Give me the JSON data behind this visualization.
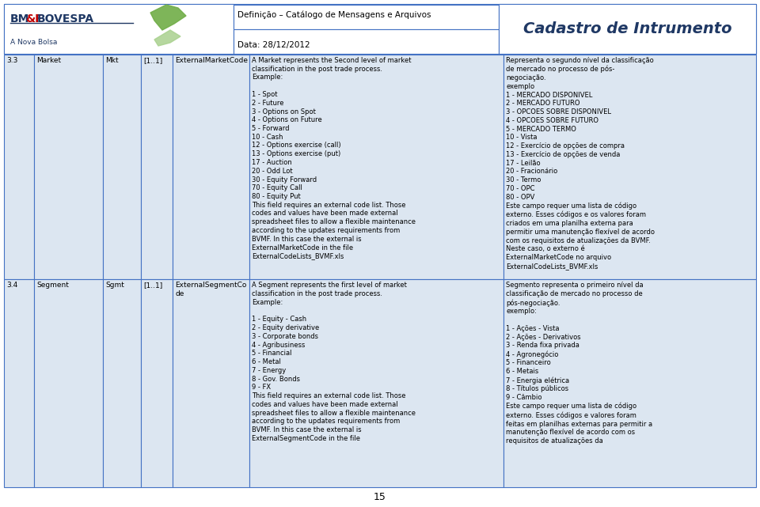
{
  "page_bg": "#ffffff",
  "cell_border": "#4472c4",
  "cell_bg": "#dce6f1",
  "header_title_left": "Definição – Catálogo de Mensagens e Arquivos",
  "header_date": "Data: 28/12/2012",
  "header_title_right": "Cadastro de Intrumento",
  "page_number": "15",
  "rows": [
    {
      "num": "3.3",
      "name": "Market",
      "abbr": "Mkt",
      "card": "[1..1]",
      "code": "ExternalMarketCode",
      "desc_en": "A Market represents the Second level of market\nclassification in the post trade process.\nExample:\n\n1 - Spot\n2 - Future\n3 - Options on Spot\n4 - Options on Future\n5 - Forward\n10 - Cash\n12 - Options exercise (call)\n13 - Options exercise (put)\n17 - Auction\n20 - Odd Lot\n30 - Equity Forward\n70 - Equity Call\n80 - Equity Put\nThis field requires an external code list. Those\ncodes and values have been made external\nspreadsheet files to allow a flexible maintenance\naccording to the updates requirements from\nBVMF. In this case the external is\nExternalMarketCode in the file\nExternalCodeLists_BVMF.xls",
      "desc_pt": "Representa o segundo nível da classificação\nde mercado no processo de pós-\nnegociação.\nexemplo\n1 - MERCADO DISPONIVEL\n2 - MERCADO FUTURO\n3 - OPCOES SOBRE DISPONIVEL\n4 - OPCOES SOBRE FUTURO\n5 - MERCADO TERMO\n10 - Vista\n12 - Exercício de opções de compra\n13 - Exercício de opções de venda\n17 - Leilão\n20 - Fracionário\n30 - Termo\n70 - OPC\n80 - OPV\nEste campo requer uma lista de código\nexterno. Esses códigos e os valores foram\ncriados em uma planilha externa para\npermitir uma manutenção flexível de acordo\ncom os requisitos de atualizações da BVMF.\nNeste caso, o externo é\nExternalMarketCode no arquivo\nExternalCodeLists_BVMF.xls"
    },
    {
      "num": "3.4",
      "name": "Segment",
      "abbr": "Sgmt",
      "card": "[1..1]",
      "code": "ExternalSegmentCo\nde",
      "desc_en": "A Segment represents the first level of market\nclassification in the post trade process.\nExample:\n\n1 - Equity - Cash\n2 - Equity derivative\n3 - Corporate bonds\n4 - Agribusiness\n5 - Financial\n6 - Metal\n7 - Energy\n8 - Gov. Bonds\n9 - FX\nThis field requires an external code list. Those\ncodes and values have been made external\nspreadsheet files to allow a flexible maintenance\naccording to the updates requirements from\nBVMF. In this case the external is\nExternalSegmentCode in the file",
      "desc_pt": "Segmento representa o primeiro nível da\nclassificação de mercado no processo de\npós-negociação.\nexemplo:\n\n1 - Ações - Vista\n2 - Ações - Derivativos\n3 - Renda fixa privada\n4 - Agronegócio\n5 - Financeiro\n6 - Metais\n7 - Energia elétrica\n8 - Títulos públicos\n9 - Câmbio\nEste campo requer uma lista de código\nexterno. Esses códigos e valores foram\nfeitas em planilhas externas para permitir a\nmanutenção flexível de acordo com os\nrequisitos de atualizações da"
    }
  ]
}
